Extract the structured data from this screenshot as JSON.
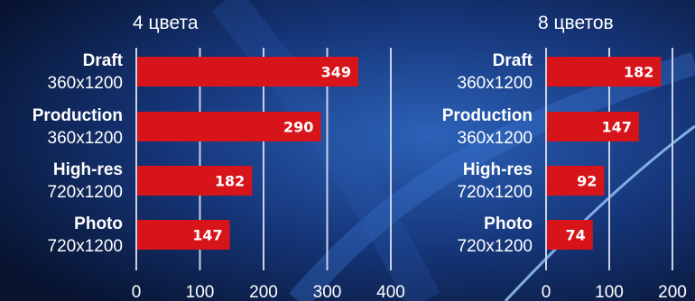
{
  "chart_data": [
    {
      "type": "bar",
      "orientation": "horizontal",
      "title": "4 цвета",
      "categories": [
        "Draft",
        "Production",
        "High-res",
        "Photo"
      ],
      "subcategories": [
        "360x1200",
        "360x1200",
        "720x1200",
        "720x1200"
      ],
      "values": [
        349,
        290,
        182,
        147
      ],
      "xlim": [
        0,
        400
      ],
      "ticks": [
        0,
        100,
        200,
        300,
        400
      ],
      "bar_color": "#d7141a",
      "grid": true
    },
    {
      "type": "bar",
      "orientation": "horizontal",
      "title": "8 цветов",
      "categories": [
        "Draft",
        "Production",
        "High-res",
        "Photo"
      ],
      "subcategories": [
        "360x1200",
        "360x1200",
        "720x1200",
        "720x1200"
      ],
      "values": [
        182,
        147,
        92,
        74
      ],
      "xlim": [
        0,
        200
      ],
      "ticks": [
        0,
        100,
        200
      ],
      "bar_color": "#d7141a",
      "grid": true
    }
  ]
}
